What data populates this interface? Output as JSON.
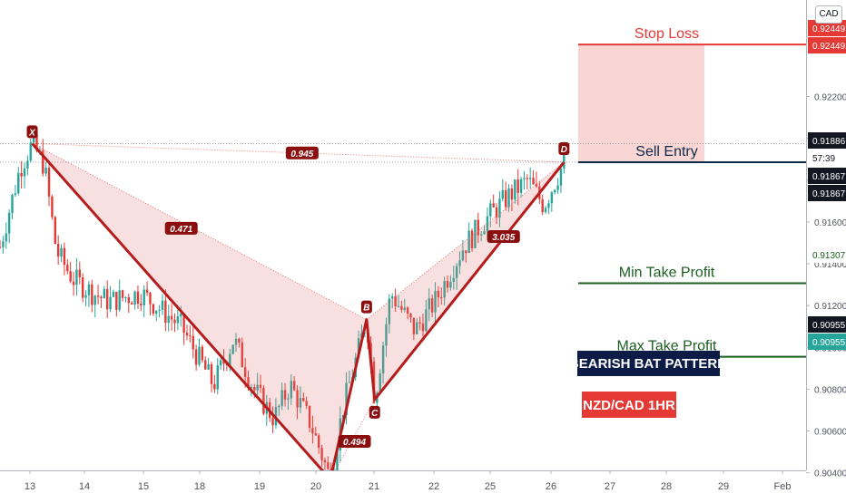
{
  "symbol_badge": "CAD",
  "chart_data": {
    "type": "candlestick",
    "title": "",
    "currency": "CAD",
    "x_ticks": [
      "13",
      "14",
      "15",
      "18",
      "19",
      "20",
      "21",
      "22",
      "25",
      "26",
      "27",
      "28",
      "29",
      "Feb"
    ],
    "y_ticks": [
      "0.92200",
      "0.92000",
      "0.91800",
      "0.91600",
      "0.91400",
      "0.91200",
      "0.91000",
      "0.90800",
      "0.90600",
      "0.90400"
    ],
    "ylim": [
      0.90277,
      0.92662
    ],
    "x_range": [
      12.5,
      33.5
    ],
    "price_tags": [
      {
        "label": "0.92449",
        "color": "#e53935",
        "text_color": "#ffffff"
      },
      {
        "label": "0.92449",
        "color": "#e53935",
        "text_color": "#ffffff"
      },
      {
        "label": "0.91886",
        "color": "#131722",
        "text_color": "#ffffff"
      },
      {
        "label": "57:39",
        "color": "#ffffff",
        "text_color": "#131722"
      },
      {
        "label": "0.91867",
        "color": "#131722",
        "text_color": "#ffffff"
      },
      {
        "label": "0.91867",
        "color": "#131722",
        "text_color": "#ffffff"
      },
      {
        "label": "0.91307",
        "color": "#ffffff",
        "text_color": "#1b5e20"
      },
      {
        "label": "0.90955",
        "color": "#131722",
        "text_color": "#ffffff"
      },
      {
        "label": "0.90955",
        "color": "#26a69a",
        "text_color": "#ffffff"
      }
    ],
    "horizontal_levels": [
      {
        "name": "stop-loss",
        "label": "Stop Loss",
        "price": 0.92449,
        "color": "#e53935"
      },
      {
        "name": "sell-entry",
        "label": "Sell Entry",
        "price": 0.91886,
        "color": "#0d2a4a"
      },
      {
        "name": "min-take-profit",
        "label": "Min Take Profit",
        "price": 0.91307,
        "color": "#1b5e20"
      },
      {
        "name": "max-take-profit",
        "label": "Max Take Profit",
        "price": 0.90955,
        "color": "#1b5e20"
      }
    ],
    "risk_zone": {
      "from": 0.91886,
      "to": 0.92449,
      "color": "#f8cfcd"
    },
    "reward_zone": {
      "from": 0.90955,
      "to": 0.91886,
      "color": "#cdeeea"
    },
    "pattern_points": [
      {
        "label": "X",
        "t": 13.3,
        "price": 0.91975
      },
      {
        "label": "A",
        "t": 20.7,
        "price": 0.90368
      },
      {
        "label": "B",
        "t": 21.6,
        "price": 0.91133
      },
      {
        "label": "C",
        "t": 21.8,
        "price": 0.9075
      },
      {
        "label": "D",
        "t": 26.5,
        "price": 0.91886
      }
    ],
    "ratios": [
      {
        "label": "0.471",
        "t": 17.0,
        "price": 0.9157
      },
      {
        "label": "0.494",
        "t": 21.3,
        "price": 0.9055
      },
      {
        "label": "3.035",
        "t": 25.0,
        "price": 0.9153
      },
      {
        "label": "0.945",
        "t": 20.0,
        "price": 0.9193
      }
    ],
    "dotted_levels": [
      0.91975,
      0.91886,
      0.9039
    ],
    "pattern_name": "BEARISH BAT PATTERN",
    "pair_label": "NZD/CAD   1HR",
    "candle_colors": {
      "up": "#26a69a",
      "down": "#e53935"
    }
  }
}
